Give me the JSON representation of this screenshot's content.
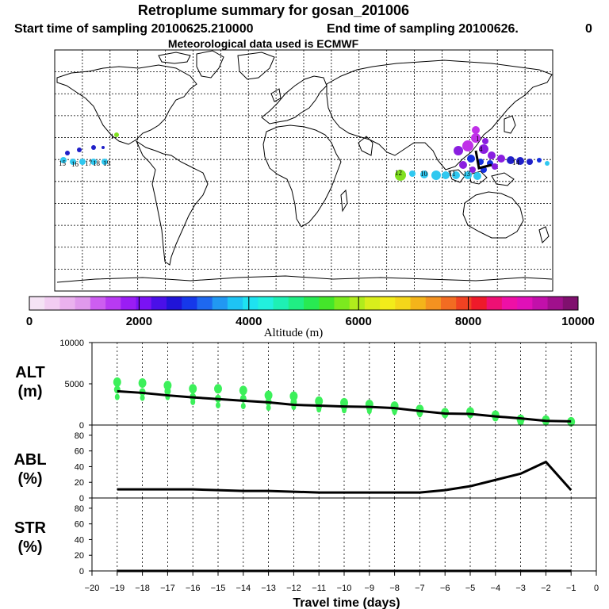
{
  "header": {
    "title": "Retroplume summary for gosan_201006",
    "start_label": "Start time of sampling 20100625.210000",
    "end_label": "End time of sampling 20100626.",
    "end_suffix": "0",
    "met_label": "Meteorological data used is ECMWF"
  },
  "colorbar": {
    "ticks": [
      "0",
      "2000",
      "4000",
      "6000",
      "8000",
      "10000"
    ],
    "label": "Altitude (m)",
    "colors": [
      "#f5e3f5",
      "#f2cdf2",
      "#eab2ee",
      "#e099ec",
      "#cd5ef0",
      "#b83af2",
      "#9a1df4",
      "#7a12f4",
      "#4a10e8",
      "#2014d8",
      "#1638ea",
      "#1e68ef",
      "#2198f2",
      "#1ec4f4",
      "#1ee2f0",
      "#22f0de",
      "#1ef0b4",
      "#20ee84",
      "#28ea52",
      "#44e62a",
      "#7cea1e",
      "#b0ec1c",
      "#d8ee1c",
      "#f2ec1a",
      "#f4d61a",
      "#f4b41a",
      "#f49220",
      "#f26c22",
      "#f04222",
      "#ee1a2a",
      "#ee1074",
      "#ee10a6",
      "#e010b8",
      "#c210aa",
      "#a0108c",
      "#80106e"
    ]
  },
  "map": {
    "markers": [
      "1",
      "1",
      "4",
      "10",
      "11",
      "12",
      "13",
      "14",
      "15",
      "16",
      "17",
      "18",
      "19"
    ],
    "point_colors": [
      "#2020c8",
      "#8a1ee0",
      "#c030e8",
      "#30c8f0",
      "#80e020",
      "#1530e0"
    ]
  },
  "chart_data": [
    {
      "type": "line",
      "id": "ALT",
      "ylabel": "ALT",
      "yunit": "(m)",
      "ylim": [
        0,
        10000
      ],
      "yticks": [
        "0",
        "5000",
        "10000"
      ],
      "x": [
        -19,
        -18,
        -17,
        -16,
        -15,
        -14,
        -13,
        -12,
        -11,
        -10,
        -9,
        -8,
        -7,
        -6,
        -5,
        -4,
        -3,
        -2,
        -1
      ],
      "line_values": [
        4100,
        3900,
        3600,
        3350,
        3150,
        2950,
        2750,
        2450,
        2350,
        2250,
        2200,
        2050,
        1700,
        1400,
        1350,
        1050,
        800,
        500,
        450
      ],
      "dots": [
        {
          "x": -19,
          "values": [
            5200,
            4300,
            3400
          ]
        },
        {
          "x": -18,
          "values": [
            5100,
            4000,
            3300
          ]
        },
        {
          "x": -17,
          "values": [
            4800,
            4100,
            3400
          ]
        },
        {
          "x": -16,
          "values": [
            4400,
            3400,
            2800
          ]
        },
        {
          "x": -15,
          "values": [
            4400,
            3200,
            2400
          ]
        },
        {
          "x": -14,
          "values": [
            4200,
            3200,
            2300
          ]
        },
        {
          "x": -13,
          "values": [
            3600,
            2800,
            2100
          ]
        },
        {
          "x": -12,
          "values": [
            3500,
            2800,
            2200
          ]
        },
        {
          "x": -11,
          "values": [
            2900,
            2300,
            1900
          ]
        },
        {
          "x": -10,
          "values": [
            2700,
            2200,
            1800
          ]
        },
        {
          "x": -9,
          "values": [
            2500,
            2100,
            1700
          ]
        },
        {
          "x": -8,
          "values": [
            2300,
            1900,
            1600
          ]
        },
        {
          "x": -7,
          "values": [
            1900,
            1500,
            1300
          ]
        },
        {
          "x": -6,
          "values": [
            1500,
            1300
          ]
        },
        {
          "x": -5,
          "values": [
            1600,
            1300
          ]
        },
        {
          "x": -4,
          "values": [
            1200,
            900
          ]
        },
        {
          "x": -3,
          "values": [
            700,
            400
          ]
        },
        {
          "x": -2,
          "values": [
            600,
            400
          ]
        },
        {
          "x": -1,
          "values": [
            400,
            300
          ]
        }
      ]
    },
    {
      "type": "line",
      "id": "ABL",
      "ylabel": "ABL",
      "yunit": "(%)",
      "ylim": [
        0,
        90
      ],
      "yticks": [
        "0",
        "20",
        "40",
        "60",
        "80"
      ],
      "x": [
        -19,
        -18,
        -17,
        -16,
        -15,
        -14,
        -13,
        -12,
        -11,
        -10,
        -9,
        -8,
        -7,
        -6,
        -5,
        -4,
        -3,
        -2,
        -1
      ],
      "values": [
        11,
        11,
        11,
        11,
        10,
        9,
        9,
        8,
        7,
        7,
        7,
        7,
        7,
        10,
        15,
        23,
        31,
        46,
        10
      ]
    },
    {
      "type": "line",
      "id": "STR",
      "ylabel": "STR",
      "yunit": "(%)",
      "ylim": [
        0,
        90
      ],
      "yticks": [
        "0",
        "20",
        "40",
        "60",
        "80"
      ],
      "x": [
        -19,
        -18,
        -17,
        -16,
        -15,
        -14,
        -13,
        -12,
        -11,
        -10,
        -9,
        -8,
        -7,
        -6,
        -5,
        -4,
        -3,
        -2,
        -1
      ],
      "values": [
        0,
        0,
        0,
        0,
        0,
        0,
        0,
        0,
        0,
        0,
        0,
        0,
        0,
        0,
        0,
        0,
        0,
        0,
        0
      ]
    }
  ],
  "xaxis": {
    "label": "Travel time (days)",
    "ticks": [
      "−20",
      "−19",
      "−18",
      "−17",
      "−16",
      "−15",
      "−14",
      "−13",
      "−12",
      "−11",
      "−10",
      "−9",
      "−8",
      "−7",
      "−6",
      "−5",
      "−4",
      "−3",
      "−2",
      "−1",
      "0"
    ]
  }
}
